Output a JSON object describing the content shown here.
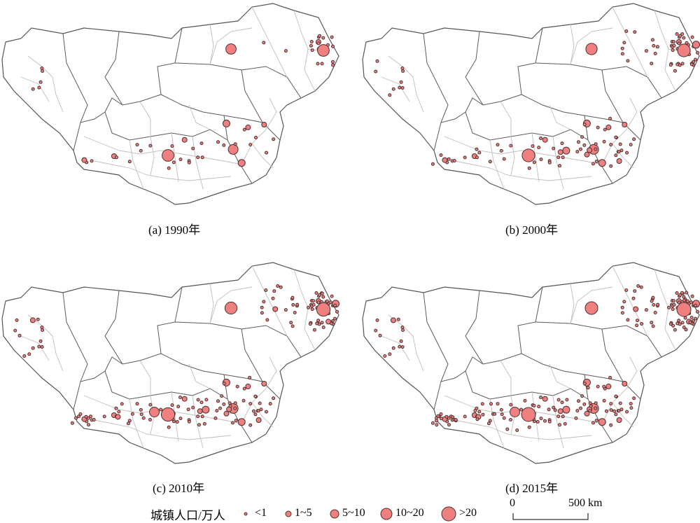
{
  "panels": [
    {
      "id": "a",
      "caption": "(a) 1990年",
      "level": 0.2
    },
    {
      "id": "b",
      "caption": "(b) 2000年",
      "level": 0.55
    },
    {
      "id": "c",
      "caption": "(c) 2010年",
      "level": 0.8
    },
    {
      "id": "d",
      "caption": "(d) 2015年",
      "level": 1.0
    }
  ],
  "legend": {
    "title": "城镇人口/万人",
    "classes": [
      "<1",
      "1~5",
      "5~10",
      "10~20",
      ">20"
    ]
  },
  "scale_bar": {
    "start": "0",
    "end": "500 km"
  },
  "colors": {
    "town_fill": "#f08080",
    "town_stroke": "#4a3030",
    "outer_border": "#555555",
    "inner_border": "#c4bcbc"
  }
}
